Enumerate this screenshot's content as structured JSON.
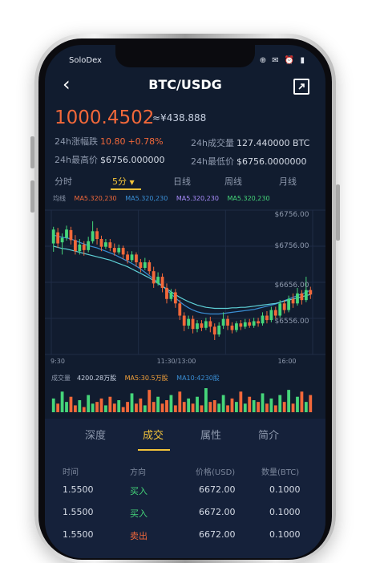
{
  "status": {
    "carrier": "SoloDex",
    "icons": "⊕ ✉ ⏰ ▮"
  },
  "header": {
    "back_icon": "chevron-left-icon",
    "title": "BTC/USDG",
    "expand_icon": "fullscreen-icon"
  },
  "ticker": {
    "price": "1000.4502",
    "cny": "≈¥438.888",
    "change_label": "24h涨幅跌",
    "change_value": "10.80",
    "change_pct": "+0.78%",
    "volume_label": "24h成交量",
    "volume_value": "127.440000 BTC",
    "high_label": "24h最高价",
    "high_value": "$6756.000000",
    "low_label": "24h最低价",
    "low_value": "$6756.0000000"
  },
  "tabs": [
    "分时",
    "5分",
    "日线",
    "周线",
    "月线"
  ],
  "tab_dropdown_icon": "▼",
  "ma": {
    "label": "均线",
    "ma5": "MA5.320,230",
    "ma5_b": "MA5.320,230",
    "ma5_c": "MA5.320,230",
    "ma5_d": "MA5.320,230"
  },
  "chart": {
    "y_labels": [
      "$6756.00",
      "$6756.00",
      "$6656.00",
      "$6556.00"
    ],
    "x_labels": [
      "9:30",
      "11:30/13:00",
      "16:00"
    ],
    "colors": {
      "up": "#45d67a",
      "down": "#f2683a",
      "line1": "#3a8fd6",
      "line2": "#5ed0d6"
    }
  },
  "volume": {
    "label": "成交量",
    "value": "4200.28万股",
    "ma5": "MA5:30.5万股",
    "ma10": "MA10:4230股"
  },
  "panel": {
    "tabs": [
      "深度",
      "成交",
      "属性",
      "简介"
    ],
    "headers": [
      "时间",
      "方向",
      "价格(USD)",
      "数量(BTC)"
    ],
    "rows": [
      {
        "time": "1.5500",
        "dir": "买入",
        "price": "6672.00",
        "qty": "0.1000"
      },
      {
        "time": "1.5500",
        "dir": "买入",
        "price": "6672.00",
        "qty": "0.1000"
      },
      {
        "time": "1.5500",
        "dir": "卖出",
        "price": "6672.00",
        "qty": "0.1000"
      }
    ]
  },
  "chart_data": {
    "type": "candlestick",
    "ylim": [
      6520,
      6780
    ],
    "candles": [
      [
        6720,
        6745,
        6705,
        6750
      ],
      [
        6740,
        6720,
        6712,
        6748
      ],
      [
        6722,
        6730,
        6700,
        6738
      ],
      [
        6730,
        6745,
        6725,
        6752
      ],
      [
        6744,
        6726,
        6718,
        6750
      ],
      [
        6726,
        6706,
        6700,
        6735
      ],
      [
        6706,
        6718,
        6700,
        6728
      ],
      [
        6718,
        6708,
        6698,
        6724
      ],
      [
        6708,
        6724,
        6704,
        6732
      ],
      [
        6724,
        6742,
        6720,
        6760
      ],
      [
        6742,
        6728,
        6718,
        6748
      ],
      [
        6728,
        6714,
        6706,
        6734
      ],
      [
        6714,
        6722,
        6710,
        6728
      ],
      [
        6722,
        6712,
        6706,
        6728
      ],
      [
        6712,
        6704,
        6698,
        6720
      ],
      [
        6704,
        6712,
        6700,
        6718
      ],
      [
        6712,
        6700,
        6692,
        6716
      ],
      [
        6700,
        6690,
        6684,
        6706
      ],
      [
        6690,
        6700,
        6686,
        6706
      ],
      [
        6700,
        6686,
        6678,
        6704
      ],
      [
        6686,
        6676,
        6668,
        6692
      ],
      [
        6676,
        6686,
        6672,
        6694
      ],
      [
        6686,
        6670,
        6664,
        6690
      ],
      [
        6670,
        6648,
        6640,
        6678
      ],
      [
        6648,
        6660,
        6644,
        6668
      ],
      [
        6660,
        6640,
        6632,
        6666
      ],
      [
        6640,
        6620,
        6612,
        6648
      ],
      [
        6620,
        6632,
        6616,
        6638
      ],
      [
        6632,
        6612,
        6604,
        6638
      ],
      [
        6612,
        6590,
        6582,
        6618
      ],
      [
        6590,
        6572,
        6562,
        6596
      ],
      [
        6572,
        6584,
        6566,
        6590
      ],
      [
        6584,
        6566,
        6558,
        6590
      ],
      [
        6566,
        6576,
        6560,
        6582
      ],
      [
        6576,
        6568,
        6562,
        6582
      ],
      [
        6568,
        6580,
        6564,
        6586
      ],
      [
        6580,
        6570,
        6560,
        6588
      ],
      [
        6570,
        6556,
        6546,
        6576
      ],
      [
        6556,
        6572,
        6552,
        6578
      ],
      [
        6572,
        6584,
        6566,
        6596
      ],
      [
        6584,
        6572,
        6564,
        6590
      ],
      [
        6572,
        6564,
        6558,
        6578
      ],
      [
        6564,
        6576,
        6560,
        6580
      ],
      [
        6576,
        6570,
        6564,
        6582
      ],
      [
        6570,
        6578,
        6566,
        6584
      ],
      [
        6578,
        6572,
        6568,
        6584
      ],
      [
        6572,
        6580,
        6568,
        6586
      ],
      [
        6580,
        6576,
        6570,
        6586
      ],
      [
        6576,
        6590,
        6572,
        6596
      ],
      [
        6590,
        6582,
        6576,
        6598
      ],
      [
        6582,
        6600,
        6578,
        6606
      ],
      [
        6600,
        6590,
        6584,
        6606
      ],
      [
        6590,
        6612,
        6586,
        6618
      ],
      [
        6612,
        6600,
        6594,
        6618
      ],
      [
        6600,
        6620,
        6596,
        6626
      ],
      [
        6620,
        6612,
        6604,
        6630
      ],
      [
        6612,
        6630,
        6608,
        6640
      ],
      [
        6630,
        6618,
        6610,
        6636
      ],
      [
        6618,
        6636,
        6614,
        6660
      ],
      [
        6636,
        6628,
        6620,
        6642
      ]
    ],
    "ma_line_1": [
      6735,
      6733,
      6731,
      6730,
      6728,
      6725,
      6722,
      6719,
      6716,
      6714,
      6712,
      6709,
      6706,
      6703,
      6700,
      6696,
      6692,
      6688,
      6684,
      6679,
      6674,
      6668,
      6662,
      6656,
      6650,
      6643,
      6636,
      6629,
      6622,
      6615,
      6609,
      6604,
      6600,
      6597,
      6595,
      6594,
      6593,
      6593,
      6593,
      6594,
      6595,
      6596,
      6597,
      6598,
      6599,
      6600,
      6601,
      6603,
      6605,
      6607,
      6609,
      6611,
      6614,
      6617,
      6620,
      6623,
      6626,
      6629,
      6632,
      6636
    ],
    "ma_line_2": [
      6715,
      6713,
      6711,
      6710,
      6708,
      6706,
      6704,
      6702,
      6700,
      6698,
      6696,
      6694,
      6692,
      6690,
      6687,
      6684,
      6681,
      6678,
      6674,
      6670,
      6666,
      6662,
      6658,
      6653,
      6648,
      6643,
      6638,
      6633,
      6628,
      6623,
      6619,
      6615,
      6612,
      6609,
      6607,
      6605,
      6604,
      6603,
      6603,
      6603,
      6603,
      6604,
      6604,
      6605,
      6605,
      6606,
      6607,
      6608,
      6609,
      6610,
      6611,
      6612,
      6614,
      6616,
      6618,
      6620,
      6622,
      6624,
      6626,
      6628
    ],
    "volumes": [
      8,
      5,
      12,
      6,
      9,
      4,
      7,
      3,
      10,
      5,
      6,
      8,
      4,
      9,
      5,
      7,
      3,
      6,
      11,
      5,
      8,
      4,
      13,
      6,
      9,
      5,
      7,
      10,
      4,
      12,
      6,
      8,
      5,
      9,
      4,
      14,
      6,
      7,
      5,
      10,
      4,
      8,
      6,
      12,
      5,
      9,
      7,
      6,
      11,
      5,
      8,
      4,
      10,
      6,
      13,
      5,
      9,
      12,
      6,
      10
    ]
  }
}
